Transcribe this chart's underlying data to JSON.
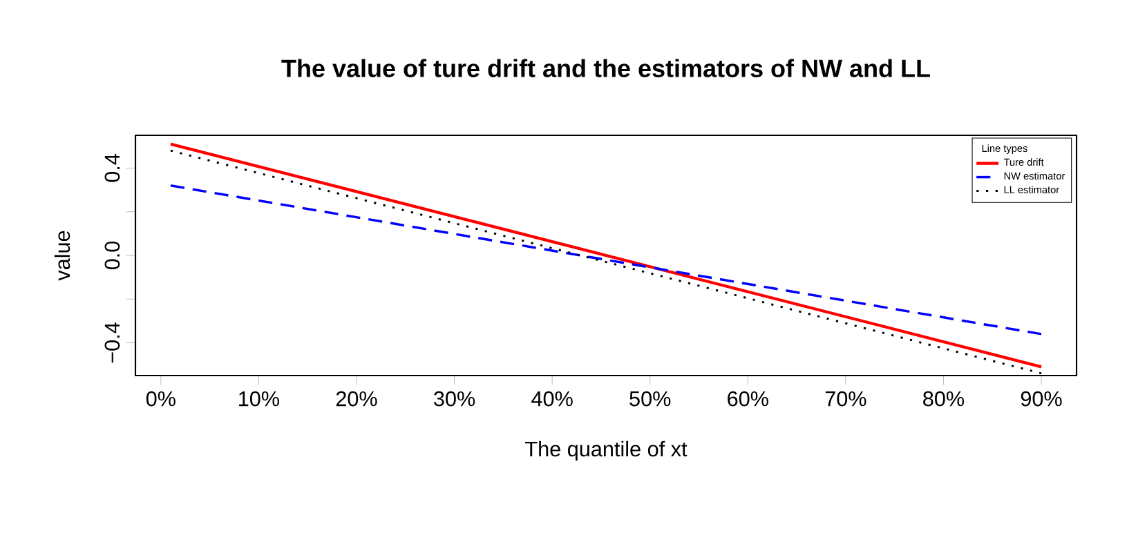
{
  "chart_data": {
    "type": "line",
    "title": "The value of ture drift and the estimators of NW and LL",
    "xlabel": "The quantile of xt",
    "ylabel": "value",
    "legend_title": "Line types",
    "legend": "top right",
    "grid": false,
    "marker": "none",
    "x": [
      1,
      90
    ],
    "xlim": [
      -2.6,
      93.6
    ],
    "ylim": [
      -0.55,
      0.55
    ],
    "xticks": [
      {
        "value": 0,
        "label": "0%"
      },
      {
        "value": 10,
        "label": "10%"
      },
      {
        "value": 20,
        "label": "20%"
      },
      {
        "value": 30,
        "label": "30%"
      },
      {
        "value": 40,
        "label": "40%"
      },
      {
        "value": 50,
        "label": "50%"
      },
      {
        "value": 60,
        "label": "60%"
      },
      {
        "value": 70,
        "label": "70%"
      },
      {
        "value": 80,
        "label": "80%"
      },
      {
        "value": 90,
        "label": "90%"
      }
    ],
    "yticks": [
      {
        "value": -0.4,
        "label": "−0.4"
      },
      {
        "value": -0.2,
        "label": null
      },
      {
        "value": 0,
        "label": "0.0"
      },
      {
        "value": 0.2,
        "label": null
      },
      0.4
    ],
    "series": [
      {
        "name": "Ture drift",
        "color": "#ff0000",
        "line_style": "solid",
        "values": [
          0.51,
          -0.51
        ]
      },
      {
        "name": "NW estimator",
        "color": "#0000ff",
        "line_style": "dashed",
        "values": [
          0.32,
          -0.36
        ]
      },
      {
        "name": "LL estimator",
        "color": "#000000",
        "line_style": "dotted",
        "values": [
          0.48,
          -0.54
        ]
      }
    ]
  }
}
